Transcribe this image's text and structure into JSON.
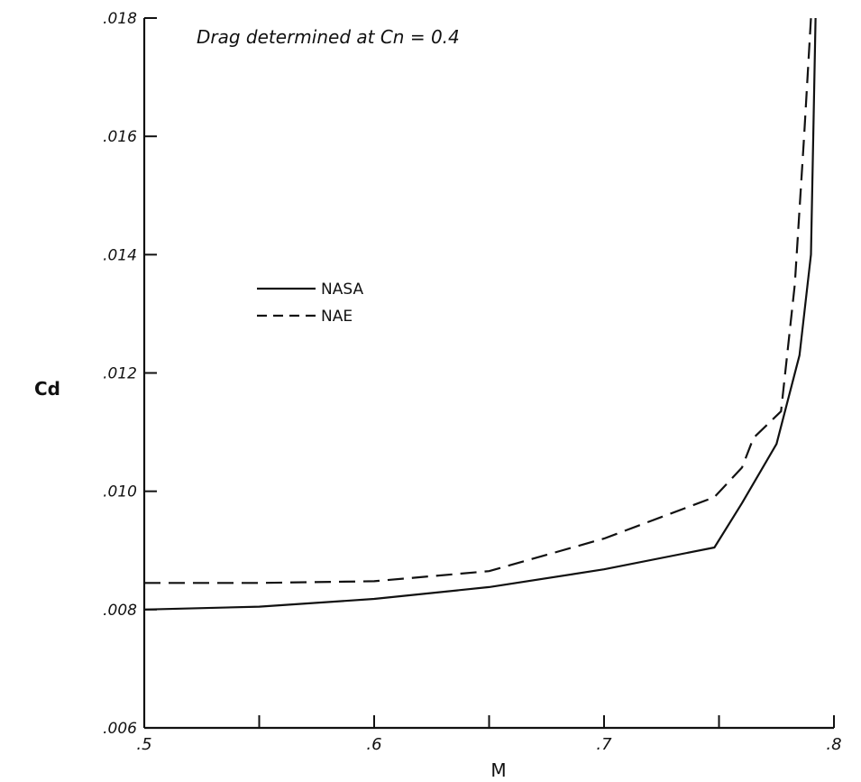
{
  "chart_data": {
    "type": "line",
    "title": "Drag determined at Cn = 0.4",
    "xlabel": "M",
    "ylabel": "Cd",
    "xlim": [
      0.5,
      0.8
    ],
    "ylim": [
      0.006,
      0.018
    ],
    "x_ticks": [
      0.5,
      0.55,
      0.6,
      0.65,
      0.7,
      0.75,
      0.8
    ],
    "x_tick_labels": [
      ".5",
      "",
      ".6",
      "",
      ".7",
      "",
      ".8"
    ],
    "y_ticks": [
      0.006,
      0.008,
      0.01,
      0.012,
      0.014,
      0.016,
      0.018
    ],
    "y_tick_labels": [
      ".006",
      ".008",
      ".010",
      ".012",
      ".014",
      ".016",
      ".018"
    ],
    "grid": false,
    "legend_position": "upper-left",
    "series": [
      {
        "name": "NASA",
        "style": "solid",
        "color": "#111111",
        "points": [
          [
            0.5,
            0.008
          ],
          [
            0.55,
            0.00805
          ],
          [
            0.6,
            0.00818
          ],
          [
            0.65,
            0.00838
          ],
          [
            0.7,
            0.00868
          ],
          [
            0.748,
            0.00905
          ],
          [
            0.76,
            0.0098
          ],
          [
            0.775,
            0.0108
          ],
          [
            0.785,
            0.0123
          ],
          [
            0.79,
            0.014
          ],
          [
            0.792,
            0.018
          ]
        ]
      },
      {
        "name": "NAE",
        "style": "dashed",
        "color": "#111111",
        "points": [
          [
            0.5,
            0.00845
          ],
          [
            0.55,
            0.00845
          ],
          [
            0.6,
            0.00848
          ],
          [
            0.65,
            0.00865
          ],
          [
            0.7,
            0.0092
          ],
          [
            0.748,
            0.0099
          ],
          [
            0.76,
            0.0104
          ],
          [
            0.765,
            0.0109
          ],
          [
            0.777,
            0.01135
          ],
          [
            0.783,
            0.0135
          ],
          [
            0.787,
            0.016
          ],
          [
            0.79,
            0.018
          ]
        ]
      }
    ]
  }
}
